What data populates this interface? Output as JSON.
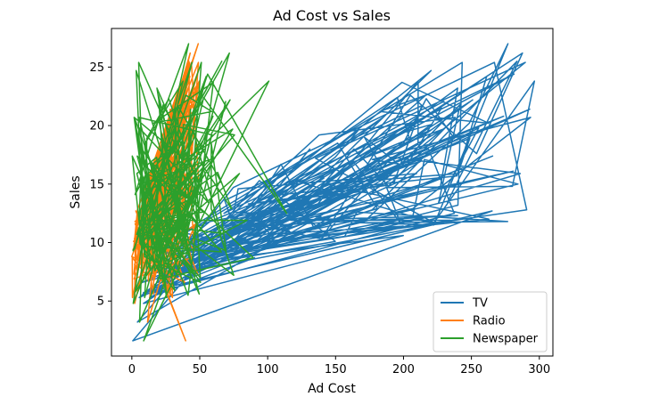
{
  "chart_data": {
    "type": "line",
    "title": "Ad Cost vs Sales",
    "xlabel": "Ad Cost",
    "ylabel": "Sales",
    "xlim": [
      -15,
      310
    ],
    "ylim": [
      0.3,
      28.3
    ],
    "xticks": [
      0,
      50,
      100,
      150,
      200,
      250,
      300
    ],
    "yticks": [
      5,
      10,
      15,
      20,
      25
    ],
    "grid": false,
    "legend_position": "lower-right",
    "series": [
      {
        "name": "TV",
        "color": "#1f77b4",
        "x": [
          230.1,
          44.5,
          17.2,
          151.5,
          180.8,
          8.7,
          57.5,
          120.2,
          8.6,
          199.8,
          66.1,
          214.7,
          23.8,
          97.5,
          204.1,
          195.4,
          67.8,
          281.4,
          69.2,
          147.3,
          218.4,
          237.4,
          13.2,
          228.3,
          62.3,
          262.9,
          142.9,
          240.1,
          248.8,
          70.6,
          292.9,
          112.9,
          97.2,
          265.6,
          95.7,
          290.7,
          266.9,
          74.7,
          43.1,
          228.0,
          202.5,
          177.0,
          293.6,
          206.9,
          25.1,
          175.1,
          89.7,
          239.9,
          227.2,
          66.9,
          199.8,
          100.4,
          216.4,
          182.6,
          262.7,
          198.9,
          7.3,
          136.2,
          210.8,
          210.7,
          53.5,
          261.3,
          239.3,
          102.7,
          131.1,
          69.0,
          31.5,
          139.3,
          237.4,
          216.8,
          199.1,
          109.8,
          26.8,
          129.4,
          213.4,
          16.9,
          27.5,
          120.5,
          5.4,
          116.0,
          76.4,
          239.8,
          75.3,
          68.4,
          213.5,
          193.2,
          76.3,
          110.7,
          88.3,
          109.8,
          134.3,
          28.6,
          217.7,
          250.9,
          107.4,
          163.3,
          197.6,
          184.9,
          289.7,
          135.2,
          222.4,
          296.4,
          280.2,
          187.9,
          238.2,
          137.9,
          25.0,
          90.4,
          13.1,
          255.4,
          225.8,
          241.7,
          175.7,
          209.6,
          78.2,
          75.1,
          139.2,
          76.4,
          125.7,
          19.4,
          141.3,
          18.8,
          224.0,
          123.1,
          229.5,
          87.2,
          7.8,
          80.2,
          220.3,
          59.6,
          0.7,
          265.2,
          8.4,
          219.8,
          36.9,
          48.3,
          25.6,
          273.7,
          43.0,
          184.9,
          73.4,
          193.7,
          220.5,
          104.6,
          96.2,
          140.3,
          240.1,
          243.2,
          38.0,
          44.7,
          280.7,
          121.0,
          197.6,
          171.3,
          187.8,
          4.1,
          93.9,
          149.8,
          11.7,
          131.7,
          172.5,
          85.7,
          188.4,
          163.5,
          117.2,
          234.5,
          17.9,
          206.8,
          215.4,
          284.3,
          50.0,
          164.5,
          19.6,
          168.4,
          222.4,
          276.9,
          248.4,
          170.2,
          276.7,
          165.6,
          156.6,
          218.5,
          56.2,
          287.6,
          253.8,
          205.0,
          139.5,
          191.1,
          286.0,
          18.7,
          39.5,
          75.5,
          17.2,
          166.8,
          149.7,
          38.2,
          94.2,
          177.0,
          283.6,
          232.1
        ],
        "y": [
          22.1,
          10.4,
          9.3,
          18.5,
          12.9,
          7.2,
          11.8,
          13.2,
          4.8,
          10.6,
          8.6,
          17.4,
          9.2,
          9.7,
          19.0,
          22.4,
          12.5,
          24.4,
          11.3,
          14.6,
          18.0,
          12.5,
          5.6,
          15.5,
          9.7,
          12.0,
          15.0,
          15.9,
          18.9,
          10.5,
          21.4,
          11.9,
          9.6,
          17.4,
          9.5,
          12.8,
          25.4,
          14.7,
          10.1,
          21.5,
          16.6,
          17.1,
          20.7,
          12.9,
          8.5,
          14.9,
          10.6,
          23.2,
          14.8,
          9.7,
          11.4,
          10.7,
          22.6,
          21.2,
          20.2,
          23.7,
          5.5,
          13.2,
          23.8,
          18.4,
          8.1,
          24.2,
          15.7,
          14.0,
          18.0,
          9.3,
          9.5,
          13.4,
          18.9,
          22.3,
          18.3,
          12.4,
          8.8,
          11.0,
          17.0,
          8.7,
          6.9,
          14.2,
          5.3,
          11.0,
          11.8,
          12.3,
          11.3,
          13.6,
          21.7,
          15.2,
          12.0,
          16.0,
          12.9,
          16.7,
          11.2,
          7.3,
          19.4,
          22.2,
          11.5,
          16.9,
          11.7,
          15.5,
          25.4,
          17.2,
          11.7,
          23.8,
          14.8,
          14.7,
          20.7,
          19.2,
          7.2,
          8.7,
          5.3,
          19.8,
          13.4,
          21.8,
          14.1,
          15.9,
          14.6,
          12.6,
          12.2,
          9.4,
          15.9,
          6.6,
          15.5,
          7.0,
          11.6,
          15.2,
          19.7,
          10.6,
          6.6,
          8.8,
          24.7,
          9.7,
          1.6,
          12.7,
          5.7,
          19.6,
          10.8,
          11.6,
          9.5,
          20.8,
          9.6,
          20.7,
          10.9,
          19.2,
          20.1,
          10.4,
          11.4,
          10.3,
          13.2,
          25.4,
          10.9,
          10.1,
          16.1,
          11.6,
          16.6,
          19.0,
          15.6,
          3.2,
          15.3,
          10.1,
          7.3,
          12.9,
          14.4,
          13.3,
          14.9,
          18.0,
          11.9,
          11.9,
          8.0,
          12.2,
          17.1,
          15.0,
          8.4,
          14.5,
          7.6,
          11.7,
          11.5,
          27.0,
          20.2,
          11.7,
          11.8,
          12.6,
          10.5,
          12.2,
          8.7,
          26.2,
          17.6,
          22.6,
          10.3,
          17.3,
          15.9,
          6.7,
          10.8,
          9.9,
          5.9,
          19.6,
          17.3,
          7.6,
          9.7,
          12.8,
          25.5,
          13.4
        ]
      },
      {
        "name": "Radio",
        "color": "#ff7f0e",
        "x": [
          37.8,
          39.3,
          45.9,
          41.3,
          10.8,
          48.9,
          32.8,
          19.6,
          2.1,
          2.6,
          5.8,
          24.0,
          35.1,
          7.6,
          32.9,
          47.7,
          36.6,
          39.6,
          20.5,
          23.9,
          27.7,
          5.1,
          15.9,
          16.9,
          12.6,
          3.5,
          29.3,
          16.7,
          27.1,
          16.0,
          28.3,
          17.4,
          1.5,
          20.0,
          1.4,
          4.1,
          43.8,
          49.4,
          26.7,
          37.7,
          22.3,
          33.4,
          27.7,
          8.4,
          25.7,
          22.5,
          9.9,
          41.5,
          15.8,
          11.7,
          3.1,
          9.6,
          41.7,
          46.2,
          28.8,
          49.4,
          28.1,
          19.2,
          49.6,
          29.5,
          2.0,
          42.7,
          15.5,
          29.6,
          42.8,
          9.3,
          24.6,
          14.5,
          27.5,
          43.9,
          30.6,
          14.3,
          33.0,
          5.7,
          24.6,
          43.7,
          1.6,
          28.5,
          29.9,
          7.7,
          26.7,
          4.1,
          20.3,
          44.5,
          43.0,
          18.4,
          27.5,
          40.6,
          25.5,
          47.8,
          4.9,
          1.5,
          33.5,
          36.5,
          14.0,
          31.6,
          3.5,
          21.0,
          42.3,
          41.7,
          4.3,
          36.3,
          10.1,
          17.2,
          34.3,
          46.4,
          11.0,
          0.3,
          0.4,
          26.9,
          8.2,
          38.0,
          15.4,
          20.6,
          46.8,
          35.0,
          14.3,
          0.8,
          36.9,
          16.0,
          26.8,
          21.7,
          2.4,
          34.6,
          32.3,
          11.8,
          38.9,
          0.0,
          49.0,
          12.0,
          39.6,
          2.9,
          27.2,
          33.5,
          38.6,
          47.0,
          39.0,
          28.9,
          25.9,
          43.9,
          17.0,
          35.4,
          33.2,
          5.7,
          14.8,
          1.9,
          7.3,
          49.0,
          40.3,
          25.8,
          13.9,
          8.4,
          23.3,
          39.7,
          21.1,
          11.6,
          43.5,
          1.3,
          36.9,
          18.4,
          18.1,
          35.8,
          18.1,
          36.8,
          14.7,
          3.4,
          37.6,
          5.2,
          23.6,
          10.6,
          11.6,
          20.9,
          20.1,
          7.1,
          3.4,
          48.9,
          30.2,
          7.8,
          2.3,
          10.0,
          2.6,
          5.4,
          5.7,
          43.0,
          21.3,
          45.1,
          2.1,
          28.7,
          13.9,
          12.1,
          41.1,
          10.8,
          4.1,
          42.0,
          35.6,
          3.7,
          4.9,
          9.3,
          42.0,
          8.6
        ],
        "y": [
          22.1,
          10.4,
          9.3,
          18.5,
          12.9,
          7.2,
          11.8,
          13.2,
          4.8,
          10.6,
          8.6,
          17.4,
          9.2,
          9.7,
          19.0,
          22.4,
          12.5,
          24.4,
          11.3,
          14.6,
          18.0,
          12.5,
          5.6,
          15.5,
          9.7,
          12.0,
          15.0,
          15.9,
          18.9,
          10.5,
          21.4,
          11.9,
          9.6,
          17.4,
          9.5,
          12.8,
          25.4,
          14.7,
          10.1,
          21.5,
          16.6,
          17.1,
          20.7,
          12.9,
          8.5,
          14.9,
          10.6,
          23.2,
          14.8,
          9.7,
          11.4,
          10.7,
          22.6,
          21.2,
          20.2,
          23.7,
          5.5,
          13.2,
          23.8,
          18.4,
          8.1,
          24.2,
          15.7,
          14.0,
          18.0,
          9.3,
          9.5,
          13.4,
          18.9,
          22.3,
          18.3,
          12.4,
          8.8,
          11.0,
          17.0,
          8.7,
          6.9,
          14.2,
          5.3,
          11.0,
          11.8,
          12.3,
          11.3,
          13.6,
          21.7,
          15.2,
          12.0,
          16.0,
          12.9,
          16.7,
          11.2,
          7.3,
          19.4,
          22.2,
          11.5,
          16.9,
          11.7,
          15.5,
          25.4,
          17.2,
          11.7,
          23.8,
          14.8,
          14.7,
          20.7,
          19.2,
          7.2,
          8.7,
          5.3,
          19.8,
          13.4,
          21.8,
          14.1,
          15.9,
          14.6,
          12.6,
          12.2,
          9.4,
          15.9,
          6.6,
          15.5,
          7.0,
          11.6,
          15.2,
          19.7,
          10.6,
          6.6,
          8.8,
          24.7,
          9.7,
          1.6,
          12.7,
          5.7,
          19.6,
          10.8,
          11.6,
          9.5,
          20.8,
          9.6,
          20.7,
          10.9,
          19.2,
          20.1,
          10.4,
          11.4,
          10.3,
          13.2,
          25.4,
          10.9,
          10.1,
          16.1,
          11.6,
          16.6,
          19.0,
          15.6,
          3.2,
          15.3,
          10.1,
          7.3,
          12.9,
          14.4,
          13.3,
          14.9,
          18.0,
          11.9,
          11.9,
          8.0,
          12.2,
          17.1,
          15.0,
          8.4,
          14.5,
          7.6,
          11.7,
          11.5,
          27.0,
          20.2,
          11.7,
          11.8,
          12.6,
          10.5,
          12.2,
          8.7,
          26.2,
          17.6,
          22.6,
          10.3,
          17.3,
          15.9,
          6.7,
          10.8,
          9.9,
          5.9,
          19.6,
          17.3,
          7.6,
          9.7,
          12.8,
          25.5,
          13.4
        ]
      },
      {
        "name": "Newspaper",
        "color": "#2ca02c",
        "x": [
          69.2,
          45.1,
          69.3,
          58.5,
          58.4,
          75.0,
          23.5,
          11.6,
          1.0,
          21.2,
          24.2,
          4.0,
          65.9,
          7.2,
          46.0,
          52.9,
          114.0,
          55.8,
          18.3,
          19.1,
          53.4,
          23.5,
          49.6,
          26.2,
          18.3,
          19.5,
          12.6,
          22.9,
          22.9,
          40.8,
          43.2,
          38.6,
          30.0,
          0.3,
          7.4,
          8.5,
          5.0,
          45.7,
          35.1,
          32.0,
          31.6,
          38.7,
          1.8,
          26.4,
          43.3,
          31.5,
          35.7,
          18.5,
          49.9,
          36.8,
          34.6,
          3.6,
          39.6,
          58.7,
          15.9,
          60.0,
          41.4,
          16.6,
          37.7,
          9.3,
          21.4,
          54.7,
          27.3,
          8.4,
          28.9,
          0.9,
          2.2,
          10.2,
          11.0,
          27.2,
          38.7,
          31.7,
          19.3,
          31.3,
          13.1,
          89.4,
          20.7,
          14.2,
          9.4,
          23.1,
          22.3,
          36.9,
          32.5,
          35.6,
          33.8,
          65.7,
          16.0,
          63.2,
          73.4,
          51.4,
          9.3,
          33.0,
          59.0,
          72.3,
          10.9,
          52.9,
          5.9,
          22.0,
          51.2,
          45.9,
          49.8,
          100.9,
          21.4,
          17.9,
          5.3,
          59.0,
          29.7,
          23.2,
          25.6,
          5.5,
          56.5,
          23.2,
          2.4,
          10.7,
          34.5,
          52.7,
          25.6,
          14.8,
          79.2,
          22.3,
          46.2,
          50.4,
          15.6,
          12.4,
          74.2,
          25.9,
          50.6,
          9.2,
          3.2,
          43.1,
          8.7,
          43.0,
          2.1,
          45.1,
          65.6,
          8.5,
          9.3,
          59.7,
          20.5,
          1.7,
          12.9,
          75.6,
          37.9,
          34.4,
          38.9,
          9.0,
          8.7,
          44.3,
          11.9,
          20.6,
          37.0,
          48.7,
          14.2,
          37.7,
          9.5,
          5.7,
          50.5,
          24.3,
          45.2,
          34.6,
          30.7,
          49.3,
          25.6,
          7.4,
          5.4,
          84.8,
          21.6,
          19.4,
          57.6,
          6.4,
          18.4,
          47.4,
          17.0,
          12.8,
          13.1,
          41.8,
          20.3,
          35.2,
          23.7,
          17.6,
          8.3,
          27.4,
          29.7,
          71.8,
          30.0,
          19.6,
          26.6,
          18.2,
          3.7,
          23.4,
          5.8,
          6.0,
          31.6,
          3.6,
          6.0,
          13.8,
          8.1,
          6.4,
          66.2,
          8.7
        ],
        "y": [
          22.1,
          10.4,
          9.3,
          18.5,
          12.9,
          7.2,
          11.8,
          13.2,
          4.8,
          10.6,
          8.6,
          17.4,
          9.2,
          9.7,
          19.0,
          22.4,
          12.5,
          24.4,
          11.3,
          14.6,
          18.0,
          12.5,
          5.6,
          15.5,
          9.7,
          12.0,
          15.0,
          15.9,
          18.9,
          10.5,
          21.4,
          11.9,
          9.6,
          17.4,
          9.5,
          12.8,
          25.4,
          14.7,
          10.1,
          21.5,
          16.6,
          17.1,
          20.7,
          12.9,
          8.5,
          14.9,
          10.6,
          23.2,
          14.8,
          9.7,
          11.4,
          10.7,
          22.6,
          21.2,
          20.2,
          23.7,
          5.5,
          13.2,
          23.8,
          18.4,
          8.1,
          24.2,
          15.7,
          14.0,
          18.0,
          9.3,
          9.5,
          13.4,
          18.9,
          22.3,
          18.3,
          12.4,
          8.8,
          11.0,
          17.0,
          8.7,
          6.9,
          14.2,
          5.3,
          11.0,
          11.8,
          12.3,
          11.3,
          13.6,
          21.7,
          15.2,
          12.0,
          16.0,
          12.9,
          16.7,
          11.2,
          7.3,
          19.4,
          22.2,
          11.5,
          16.9,
          11.7,
          15.5,
          25.4,
          17.2,
          11.7,
          23.8,
          14.8,
          14.7,
          20.7,
          19.2,
          7.2,
          8.7,
          5.3,
          19.8,
          13.4,
          21.8,
          14.1,
          15.9,
          14.6,
          12.6,
          12.2,
          9.4,
          15.9,
          6.6,
          15.5,
          7.0,
          11.6,
          15.2,
          19.7,
          10.6,
          6.6,
          8.8,
          24.7,
          9.7,
          1.6,
          12.7,
          5.7,
          19.6,
          10.8,
          11.6,
          9.5,
          20.8,
          9.6,
          20.7,
          10.9,
          19.2,
          20.1,
          10.4,
          11.4,
          10.3,
          13.2,
          25.4,
          10.9,
          10.1,
          16.1,
          11.6,
          16.6,
          19.0,
          15.6,
          3.2,
          15.3,
          10.1,
          7.3,
          12.9,
          14.4,
          13.3,
          14.9,
          18.0,
          11.9,
          11.9,
          8.0,
          12.2,
          17.1,
          15.0,
          8.4,
          14.5,
          7.6,
          11.7,
          11.5,
          27.0,
          20.2,
          11.7,
          11.8,
          12.6,
          10.5,
          12.2,
          8.7,
          26.2,
          17.6,
          22.6,
          10.3,
          17.3,
          15.9,
          6.7,
          10.8,
          9.9,
          5.9,
          19.6,
          17.3,
          7.6,
          9.7,
          12.8,
          25.5,
          13.4
        ]
      }
    ]
  }
}
